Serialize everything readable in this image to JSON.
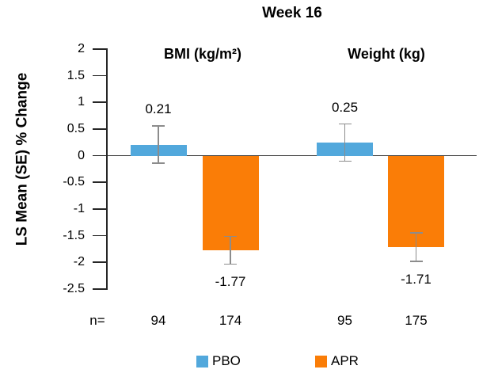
{
  "chart_data": {
    "type": "bar",
    "title": "Week 16",
    "ylabel": "LS Mean (SE) % Change",
    "ylim": [
      -2.5,
      2
    ],
    "yticks": [
      2,
      1.5,
      1,
      0.5,
      0,
      -0.5,
      -1,
      -1.5,
      -2,
      -2.5
    ],
    "grid": false,
    "legend_position": "bottom",
    "n_prefix": "n=",
    "axis_color": "#262626",
    "zero_line_color": "#3f3f3f",
    "error_bar_color": "#8c8c8c",
    "series": [
      {
        "name": "PBO",
        "color": "#52A8DC"
      },
      {
        "name": "APR",
        "color": "#FA7D07"
      }
    ],
    "groups": [
      {
        "label": "BMI (kg/m²)",
        "bars": [
          {
            "series": "PBO",
            "value": 0.21,
            "label": "0.21",
            "se": 0.36,
            "n": "94"
          },
          {
            "series": "APR",
            "value": -1.77,
            "label": "-1.77",
            "se": 0.27,
            "n": "174"
          }
        ]
      },
      {
        "label": "Weight (kg)",
        "bars": [
          {
            "series": "PBO",
            "value": 0.25,
            "label": "0.25",
            "se": 0.36,
            "n": "95"
          },
          {
            "series": "APR",
            "value": -1.71,
            "label": "-1.71",
            "se": 0.28,
            "n": "175"
          }
        ]
      }
    ]
  }
}
